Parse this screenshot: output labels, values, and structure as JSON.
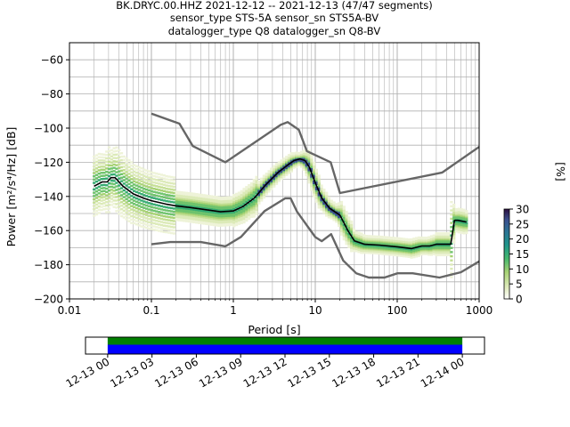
{
  "title": {
    "line1": "BK.DRYC.00.HHZ   2021-12-12 -- 2021-12-13  (47/47 segments)",
    "line2": "sensor_type STS-5A sensor_sn STS5A-BV",
    "line3": "datalogger_type Q8 datalogger_sn Q8-BV"
  },
  "chart_data": [
    {
      "type": "line",
      "title": "BK.DRYC.00.HHZ   2021-12-12 -- 2021-12-13  (47/47 segments)",
      "xlabel": "Period [s]",
      "ylabel": "Power [m²/s⁴/Hz] [dB]",
      "xscale": "log",
      "xlim": [
        0.01,
        1000
      ],
      "ylim": [
        -200,
        -50
      ],
      "xticks": [
        "0.01",
        "0.1",
        "1",
        "10",
        "100",
        "1000"
      ],
      "yticks": [
        "−200",
        "−180",
        "−160",
        "−140",
        "−120",
        "−100",
        "−80",
        "−60"
      ],
      "grid": true,
      "series": [
        {
          "role": "high-noise-model",
          "color": "#666666",
          "x": [
            0.1,
            0.22,
            0.32,
            0.8,
            3.8,
            4.6,
            6.3,
            7.9,
            15.4,
            20,
            354.8,
            1000
          ],
          "y": [
            -91.5,
            -97.4,
            -110.5,
            -120,
            -98,
            -96.5,
            -101,
            -113.5,
            -120,
            -138,
            -126,
            -111
          ]
        },
        {
          "role": "low-noise-model",
          "color": "#666666",
          "x": [
            0.1,
            0.17,
            0.4,
            0.8,
            1.24,
            2.4,
            4.3,
            5.0,
            6.0,
            10,
            12,
            15.6,
            21.9,
            31.6,
            45,
            70,
            101,
            154,
            328,
            600,
            1000
          ],
          "y": [
            -168,
            -166.7,
            -166.7,
            -169.2,
            -163.7,
            -148.6,
            -141.1,
            -141.1,
            -149,
            -163.8,
            -166.2,
            -162.1,
            -177.5,
            -185,
            -187.5,
            -187.5,
            -185,
            -185,
            -187.5,
            -184.4,
            -178
          ]
        },
        {
          "role": "mode",
          "color": "#000000",
          "x": [
            0.02,
            0.025,
            0.029,
            0.032,
            0.036,
            0.045,
            0.06,
            0.08,
            0.1,
            0.15,
            0.2,
            0.3,
            0.5,
            0.7,
            1.0,
            1.3,
            1.8,
            2.5,
            3.5,
            4.5,
            5.5,
            6.5,
            7.5,
            8.5,
            10,
            12,
            15,
            20,
            25,
            30,
            40,
            60,
            100,
            150,
            200,
            250,
            300,
            450,
            500,
            550,
            700
          ],
          "y": [
            -134,
            -131.5,
            -131.5,
            -129,
            -129,
            -134,
            -138.5,
            -141,
            -142.5,
            -144.5,
            -145.5,
            -146.5,
            -148,
            -149,
            -148.5,
            -146,
            -141,
            -133,
            -126,
            -122,
            -119,
            -118,
            -119,
            -123,
            -132,
            -141,
            -147,
            -151,
            -160,
            -166,
            -168,
            -168.5,
            -169.5,
            -170.5,
            -169,
            -169,
            -168,
            -168,
            -154,
            -154,
            -155
          ]
        }
      ]
    },
    {
      "type": "heatmap",
      "role": "colorbar",
      "label": "[%]",
      "colormap": "pqlx",
      "range": [
        0,
        30
      ],
      "ticks": [
        "0",
        "5",
        "10",
        "15",
        "20",
        "25",
        "30"
      ]
    },
    {
      "type": "bar",
      "role": "data-coverage",
      "xticks": [
        "12-13 00",
        "12-13 03",
        "12-13 06",
        "12-13 09",
        "12-13 12",
        "12-13 15",
        "12-13 18",
        "12-13 21",
        "12-14 00"
      ],
      "xrange_hours": [
        -1.5,
        25.5
      ],
      "coverage_hours": [
        0,
        24
      ],
      "rows": [
        {
          "role": "processed",
          "color": "#008000"
        },
        {
          "role": "available",
          "color": "#0000ff"
        }
      ]
    }
  ]
}
